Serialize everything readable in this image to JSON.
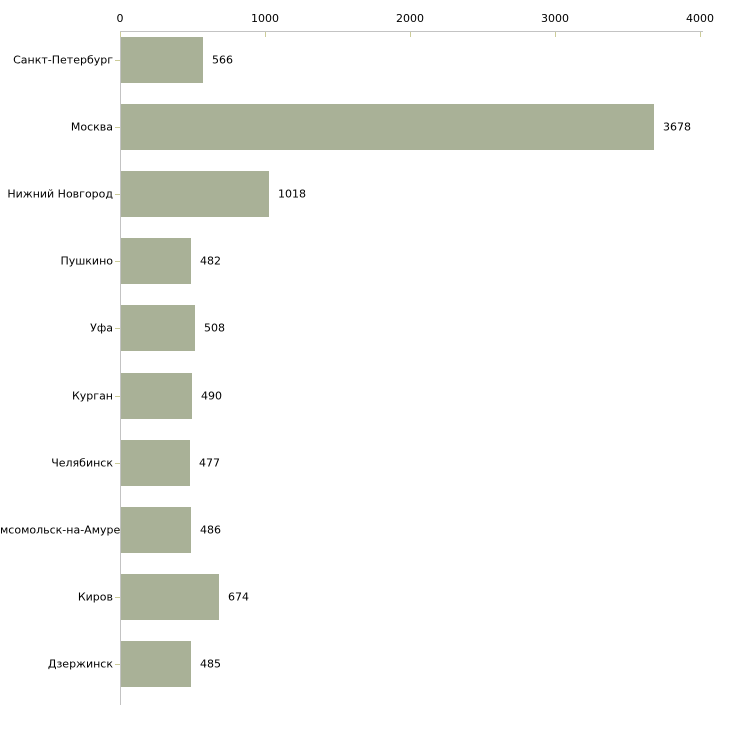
{
  "chart_data": {
    "type": "bar",
    "orientation": "horizontal",
    "title": "",
    "xlabel": "",
    "ylabel": "",
    "categories": [
      "Санкт-Петербург",
      "Москва",
      "Нижний Новгород",
      "Пушкино",
      "Уфа",
      "Курган",
      "Челябинск",
      "мсомольск-на-Амуре",
      "Киров",
      "Дзержинск"
    ],
    "values": [
      566,
      3678,
      1018,
      482,
      508,
      490,
      477,
      486,
      674,
      485
    ],
    "value_labels": [
      "566",
      "3678",
      "1018",
      "482",
      "508",
      "490",
      "477",
      "486",
      "674",
      "485"
    ],
    "x_ticks": [
      "0",
      "1000",
      "2000",
      "3000",
      "4000"
    ],
    "x_tick_values": [
      0,
      1000,
      2000,
      3000,
      4000
    ],
    "xlim": [
      0,
      4000
    ],
    "grid": false,
    "legend": null,
    "colors": {
      "bar": "#a9b197",
      "axis_line": "#c3c3c3",
      "tick_mark": "#cccc99",
      "text": "#000000",
      "background": "#ffffff"
    }
  }
}
